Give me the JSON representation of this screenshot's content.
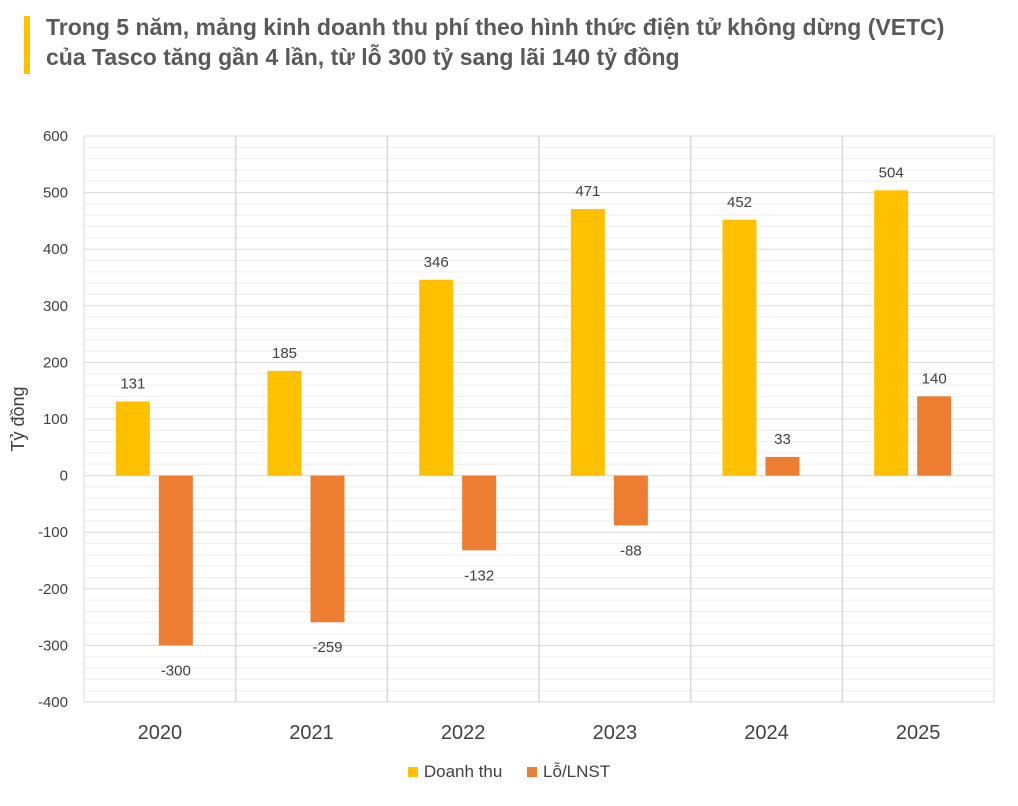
{
  "title": "Trong 5 năm, mảng kinh doanh thu phí theo hình thức điện tử không dừng (VETC) của Tasco tăng gần 4 lần, từ lỗ 300 tỷ sang lãi 140 tỷ đồng",
  "colors": {
    "accent": "#ffc000",
    "revenue": "#ffc000",
    "profit": "#ed7d31"
  },
  "chart_data": {
    "type": "bar",
    "categories": [
      "2020",
      "2021",
      "2022",
      "2023",
      "2024",
      "2025"
    ],
    "series": [
      {
        "name": "Doanh thu",
        "color": "#ffc000",
        "values": [
          131,
          185,
          346,
          471,
          452,
          504
        ]
      },
      {
        "name": "Lỗ/LNST",
        "color": "#ed7d31",
        "values": [
          -300,
          -259,
          -132,
          -88,
          33,
          140
        ]
      }
    ],
    "ylabel": "Tỷ đồng",
    "xlabel": "",
    "ylim": [
      -400,
      600
    ],
    "yticks": [
      600,
      500,
      400,
      300,
      200,
      100,
      0,
      -100,
      -200,
      -300,
      -400
    ],
    "grid": true,
    "legend_position": "bottom"
  }
}
